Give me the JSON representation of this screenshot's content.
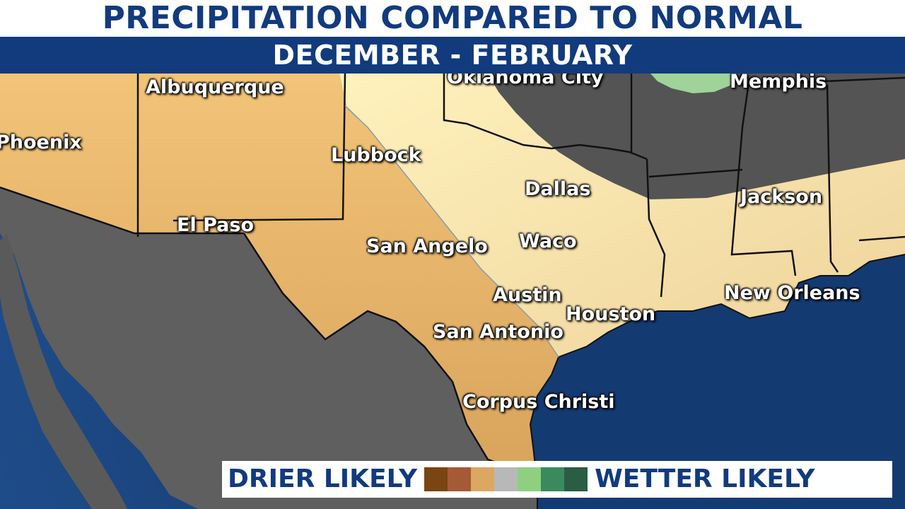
{
  "title": "PRECIPITATION COMPARED TO NORMAL",
  "subtitle": "DECEMBER - FEBRUARY",
  "cities": [
    {
      "id": "oklahoma-city",
      "name": "Oklahoma City"
    },
    {
      "id": "memphis",
      "name": "Memphis"
    },
    {
      "id": "albuquerque",
      "name": "Albuquerque"
    },
    {
      "id": "phoenix",
      "name": "Phoenix"
    },
    {
      "id": "lubbock",
      "name": "Lubbock"
    },
    {
      "id": "dallas",
      "name": "Dallas"
    },
    {
      "id": "jackson",
      "name": "Jackson"
    },
    {
      "id": "el-paso",
      "name": "El Paso"
    },
    {
      "id": "san-angelo",
      "name": "San Angelo"
    },
    {
      "id": "waco",
      "name": "Waco"
    },
    {
      "id": "austin",
      "name": "Austin"
    },
    {
      "id": "new-orleans",
      "name": "New Orleans"
    },
    {
      "id": "houston",
      "name": "Houston"
    },
    {
      "id": "san-antonio",
      "name": "San Antonio"
    },
    {
      "id": "corpus-christi",
      "name": "Corpus Christi"
    }
  ],
  "legend": {
    "left_label": "DRIER LIKELY",
    "right_label": "WETTER LIKELY",
    "swatches": [
      "#7a4512",
      "#a55a35",
      "#dca760",
      "#b8b8b8",
      "#8fcf80",
      "#3b8a5e",
      "#2a5e44"
    ]
  },
  "colors": {
    "title_text": "#123b7d",
    "subtitle_bar": "#123b7d",
    "ocean": "#13376b",
    "mexico_land": "#5f5f5f",
    "normal_gray": "#545454",
    "drier_tan": "#e3b36a",
    "slightly_drier": "#ebd297",
    "wetter_green": "#9fd39a"
  }
}
